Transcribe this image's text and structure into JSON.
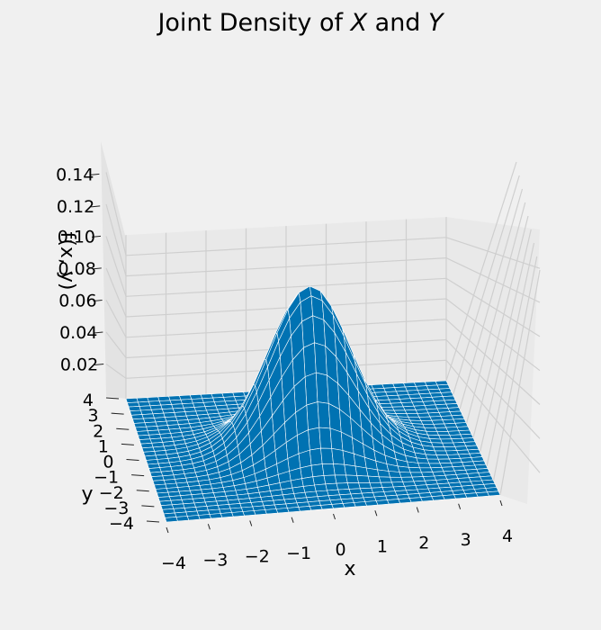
{
  "title_plain": "Joint Density of ",
  "title_var1": "X",
  "title_and": " and ",
  "title_var2": "Y",
  "chart_data": {
    "type": "surface",
    "title": "Joint Density of X and Y",
    "xlabel": "x",
    "ylabel": "y",
    "zlabel": "f(x, y)",
    "xlim": [
      -4,
      4
    ],
    "ylim": [
      -4,
      4
    ],
    "zlim": [
      0,
      0.16
    ],
    "x_ticks": [
      -4,
      -3,
      -2,
      -1,
      0,
      1,
      2,
      3,
      4
    ],
    "y_ticks": [
      -4,
      -3,
      -2,
      -1,
      0,
      1,
      2,
      3,
      4
    ],
    "z_ticks": [
      0.02,
      0.04,
      0.06,
      0.08,
      0.1,
      0.12,
      0.14
    ],
    "x_tick_labels": [
      "−4",
      "−3",
      "−2",
      "−1",
      "0",
      "1",
      "2",
      "3",
      "4"
    ],
    "y_tick_labels": [
      "−4",
      "−3",
      "−2",
      "−1",
      "0",
      "1",
      "2",
      "3",
      "4"
    ],
    "z_tick_labels": [
      "0.02",
      "0.04",
      "0.06",
      "0.08",
      "0.10",
      "0.12",
      "0.14"
    ],
    "function": "bivariate standard normal density f(x, y) = exp(-(x^2 + y^2) / 2) / (2π)",
    "peak": {
      "x": 0,
      "y": 0,
      "z": 0.159
    },
    "grid_steps": 30,
    "surface_color": "#0072b2",
    "grid_color": "#ffffff",
    "background_color": "#f0f0f0"
  }
}
